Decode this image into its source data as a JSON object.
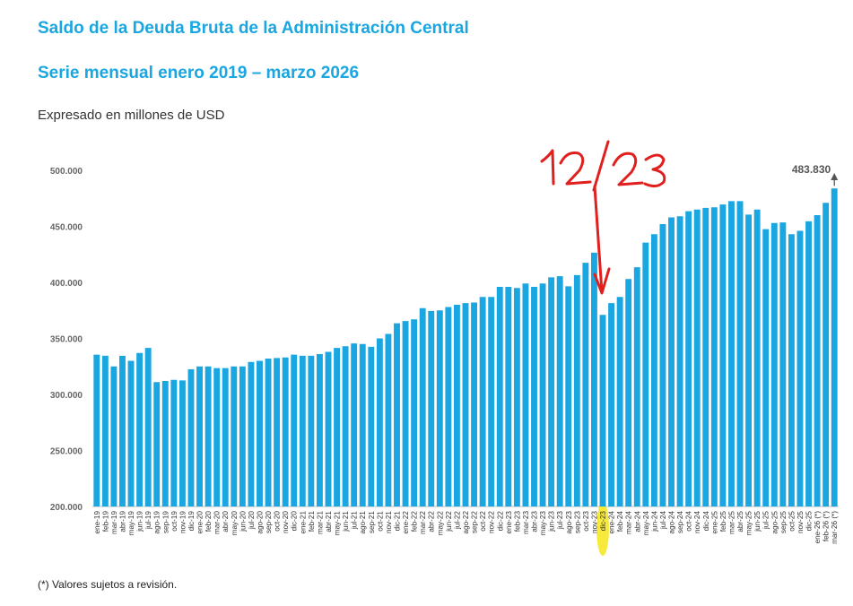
{
  "header": {
    "title": "Saldo de la Deuda Bruta de la Administración Central",
    "subtitle": "Serie mensual enero 2019 – marzo 2026",
    "unit": "Expresado en millones de USD"
  },
  "footnote": "(*) Valores sujetos a revisión.",
  "annotation": {
    "handwritten_text": "12/23",
    "color": "#e0201e",
    "highlight_color": "#f6e61a",
    "points_to": "dic-23"
  },
  "colors": {
    "bar": "#1aa6e0",
    "last_label": "#555555"
  },
  "chart_data": {
    "type": "bar",
    "title": "Saldo de la Deuda Bruta de la Administración Central",
    "subtitle": "Serie mensual enero 2019 – marzo 2026",
    "ylabel": "Expresado en millones de USD",
    "ylim": [
      200000,
      500000
    ],
    "yticks": [
      200000,
      250000,
      300000,
      350000,
      400000,
      450000,
      500000
    ],
    "ytick_labels": [
      "200.000",
      "250.000",
      "300.000",
      "350.000",
      "400.000",
      "450.000",
      "500.000"
    ],
    "grid": false,
    "last_value_label": "483.830",
    "categories": [
      "ene-19",
      "feb-19",
      "mar-19",
      "abr-19",
      "may-19",
      "jun-19",
      "jul-19",
      "ago-19",
      "sep-19",
      "oct-19",
      "nov-19",
      "dic-19",
      "ene-20",
      "feb-20",
      "mar-20",
      "abr-20",
      "may-20",
      "jun-20",
      "jul-20",
      "ago-20",
      "sep-20",
      "oct-20",
      "nov-20",
      "dic-20",
      "ene-21",
      "feb-21",
      "mar-21",
      "abr-21",
      "may-21",
      "jun-21",
      "jul-21",
      "ago-21",
      "sep-21",
      "oct-21",
      "nov-21",
      "dic-21",
      "ene-22",
      "feb-22",
      "mar-22",
      "abr-22",
      "may-22",
      "jun-22",
      "jul-22",
      "ago-22",
      "sep-22",
      "oct-22",
      "nov-22",
      "dic-22",
      "ene-23",
      "feb-23",
      "mar-23",
      "abr-23",
      "may-23",
      "jun-23",
      "jul-23",
      "ago-23",
      "sep-23",
      "oct-23",
      "nov-23",
      "dic-23",
      "ene-24",
      "feb-24",
      "mar-24",
      "abr-24",
      "may-24",
      "jun-24",
      "jul-24",
      "ago-24",
      "sep-24",
      "oct-24",
      "nov-24",
      "dic-24",
      "ene-25",
      "feb-25",
      "mar-25",
      "abr-25",
      "may-25",
      "jun-25",
      "jul-25",
      "ago-25",
      "sep-25",
      "oct-25",
      "nov-25",
      "dic-25",
      "ene-26 (*)",
      "feb-26 (*)",
      "mar-26 (*)"
    ],
    "values": [
      335500,
      334500,
      325000,
      334500,
      330000,
      337000,
      341500,
      311000,
      312000,
      313000,
      312500,
      322500,
      325000,
      325000,
      323500,
      323500,
      325000,
      325000,
      329000,
      330000,
      332000,
      332500,
      333000,
      335500,
      334500,
      334500,
      336000,
      338000,
      341500,
      343000,
      345500,
      345000,
      342500,
      350000,
      354000,
      363500,
      365500,
      367000,
      377000,
      374500,
      375000,
      378000,
      380000,
      381500,
      382000,
      387000,
      387000,
      396000,
      396000,
      395000,
      399000,
      396000,
      399000,
      404500,
      405500,
      396500,
      406500,
      417500,
      426500,
      371000,
      381500,
      387000,
      403000,
      413500,
      435500,
      443000,
      452000,
      458000,
      459000,
      463500,
      465000,
      466500,
      467000,
      469500,
      472500,
      472500,
      460500,
      465000,
      447500,
      453000,
      453500,
      443000,
      446000,
      454500,
      460000,
      471000,
      483830
    ]
  }
}
